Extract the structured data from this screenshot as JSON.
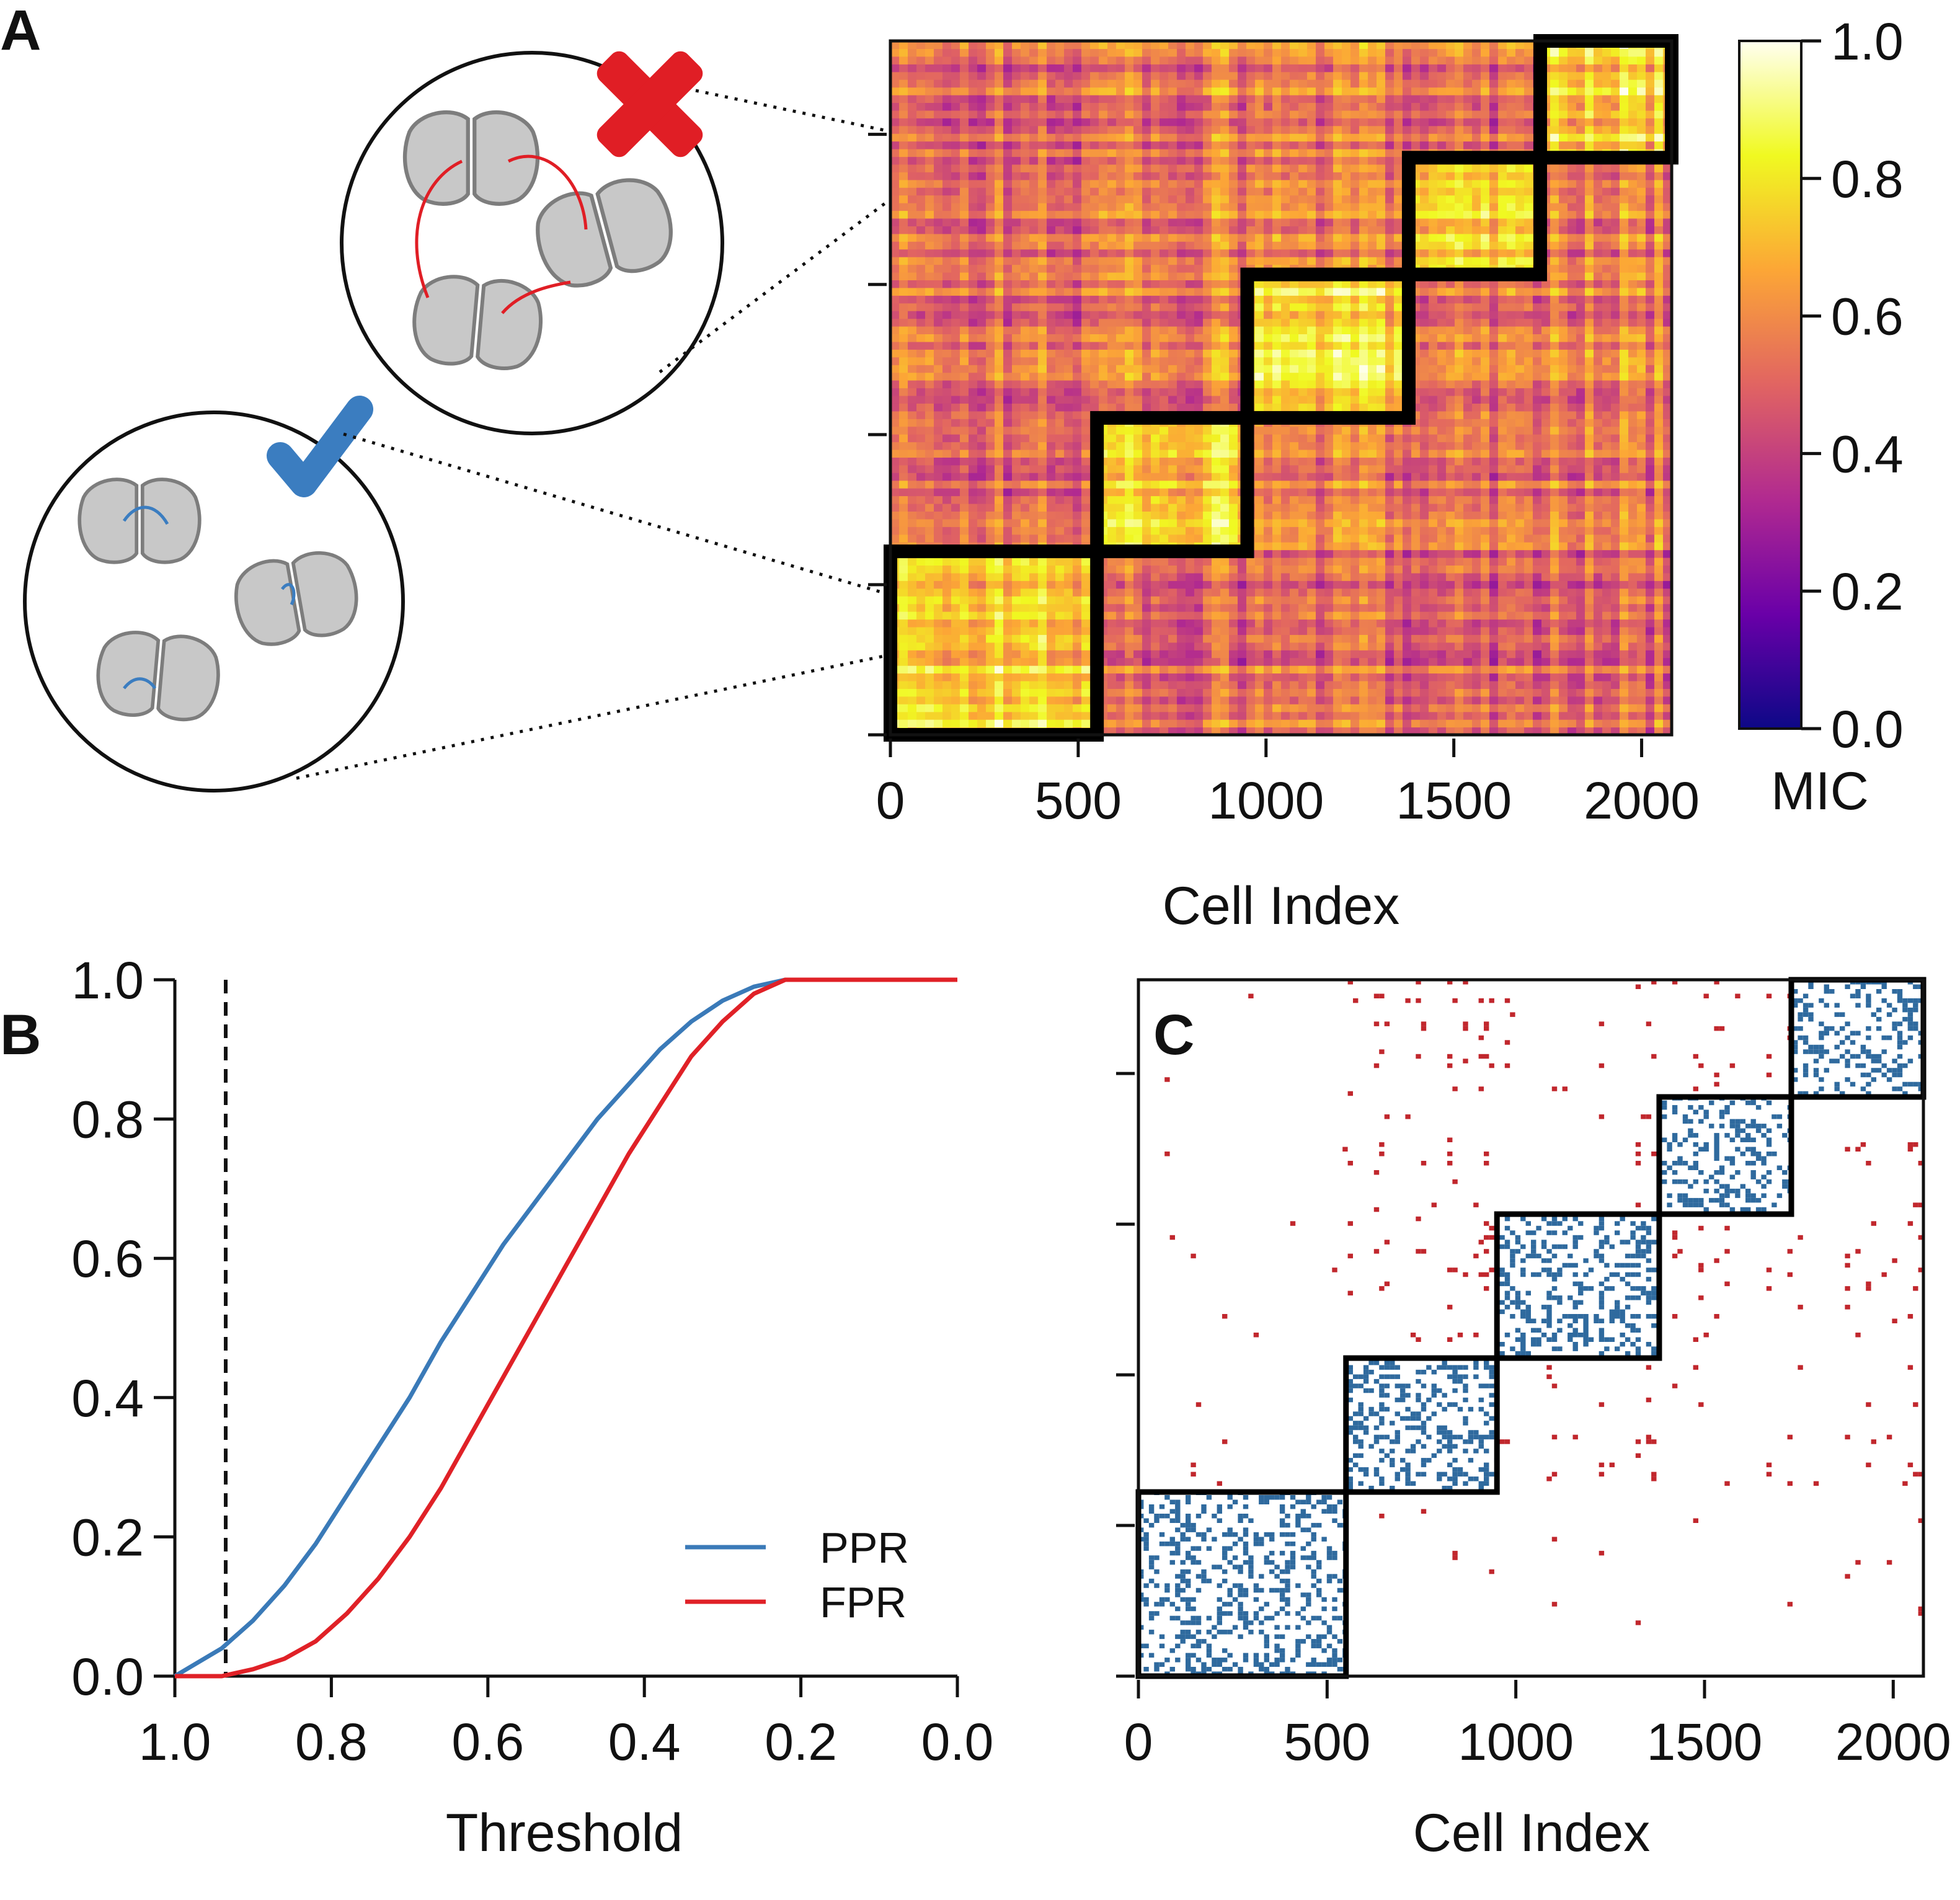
{
  "panel_labels": {
    "a": "A",
    "b": "B",
    "c": "C"
  },
  "colors": {
    "ppr": "#3a7ab8",
    "fpr": "#e02127",
    "c_in_block": "#2f6a9e",
    "c_out_block": "#c1272d",
    "cross_mark": "#e01e25",
    "check_mark": "#3b7dc0",
    "cell_fill": "#c8c8c8",
    "cell_stroke": "#7d7d7d",
    "colormap": [
      "#0d0887",
      "#6a00a8",
      "#b12a90",
      "#e16462",
      "#fca636",
      "#f0f921",
      "#fffff0"
    ]
  },
  "icons": {
    "cross": "cross-mark-icon",
    "check": "check-mark-icon"
  },
  "chart_data": [
    {
      "id": "A",
      "type": "heatmap",
      "xlabel": "Cell Index",
      "ylabel": "",
      "xlim": [
        0,
        2080
      ],
      "ylim": [
        0,
        2080
      ],
      "x_ticks": [
        0,
        500,
        1000,
        1500,
        2000
      ],
      "x_tick_labels": [
        "0",
        "500",
        "1000",
        "1500",
        "2000"
      ],
      "y_ticks": [
        0,
        450,
        900,
        1350,
        1800
      ],
      "y_tick_labels": [],
      "block_boundaries": [
        0,
        550,
        950,
        1380,
        1730,
        2080
      ],
      "colorbar": {
        "label": "MIC",
        "range": [
          0.0,
          1.0
        ],
        "ticks": [
          0.0,
          0.2,
          0.4,
          0.6,
          0.8,
          1.0
        ],
        "tick_labels": [
          "0.0",
          "0.2",
          "0.4",
          "0.6",
          "0.8",
          "1.0"
        ]
      },
      "cluster_blocks": [
        {
          "start": 0,
          "end": 550
        },
        {
          "start": 550,
          "end": 950
        },
        {
          "start": 950,
          "end": 1380
        },
        {
          "start": 1380,
          "end": 1730
        },
        {
          "start": 1730,
          "end": 2080
        }
      ],
      "approx_mean_mic_inside_blocks": 0.75,
      "approx_mean_mic_outside_blocks": 0.55
    },
    {
      "id": "B",
      "type": "line",
      "title": "",
      "xlabel": "Threshold",
      "ylabel": "",
      "xlim": [
        1.0,
        0.0
      ],
      "ylim": [
        0.0,
        1.0
      ],
      "x_ticks": [
        1.0,
        0.8,
        0.6,
        0.4,
        0.2,
        0.0
      ],
      "x_tick_labels": [
        "1.0",
        "0.8",
        "0.6",
        "0.4",
        "0.2",
        "0.0"
      ],
      "y_ticks": [
        0.0,
        0.2,
        0.4,
        0.6,
        0.8,
        1.0
      ],
      "y_tick_labels": [
        "0.0",
        "0.2",
        "0.4",
        "0.6",
        "0.8",
        "1.0"
      ],
      "vline": {
        "x": 0.935,
        "style": "dashed"
      },
      "legend_position": "lower-right",
      "series": [
        {
          "name": "PPR",
          "x": [
            1.0,
            0.97,
            0.94,
            0.9,
            0.86,
            0.82,
            0.78,
            0.74,
            0.7,
            0.66,
            0.62,
            0.58,
            0.54,
            0.5,
            0.46,
            0.42,
            0.38,
            0.34,
            0.3,
            0.26,
            0.22,
            0.2,
            0.1,
            0.0
          ],
          "y": [
            0.0,
            0.02,
            0.04,
            0.08,
            0.13,
            0.19,
            0.26,
            0.33,
            0.4,
            0.48,
            0.55,
            0.62,
            0.68,
            0.74,
            0.8,
            0.85,
            0.9,
            0.94,
            0.97,
            0.99,
            1.0,
            1.0,
            1.0,
            1.0
          ]
        },
        {
          "name": "FPR",
          "x": [
            1.0,
            0.94,
            0.9,
            0.86,
            0.82,
            0.78,
            0.74,
            0.7,
            0.66,
            0.62,
            0.58,
            0.54,
            0.5,
            0.46,
            0.42,
            0.38,
            0.34,
            0.3,
            0.26,
            0.22,
            0.2,
            0.1,
            0.0
          ],
          "y": [
            0.0,
            0.0,
            0.01,
            0.025,
            0.05,
            0.09,
            0.14,
            0.2,
            0.27,
            0.35,
            0.43,
            0.51,
            0.59,
            0.67,
            0.75,
            0.82,
            0.89,
            0.94,
            0.98,
            1.0,
            1.0,
            1.0,
            1.0
          ]
        }
      ]
    },
    {
      "id": "C",
      "type": "heatmap",
      "xlabel": "Cell Index",
      "ylabel": "",
      "xlim": [
        0,
        2080
      ],
      "ylim": [
        0,
        2080
      ],
      "x_ticks": [
        0,
        500,
        1000,
        1500,
        2000
      ],
      "x_tick_labels": [
        "0",
        "500",
        "1000",
        "1500",
        "2000"
      ],
      "y_ticks": [
        0,
        450,
        900,
        1350,
        1800
      ],
      "y_tick_labels": [],
      "block_boundaries": [
        0,
        550,
        950,
        1380,
        1730,
        2080
      ],
      "cluster_blocks": [
        {
          "start": 0,
          "end": 550
        },
        {
          "start": 550,
          "end": 950
        },
        {
          "start": 950,
          "end": 1380
        },
        {
          "start": 1380,
          "end": 1730
        },
        {
          "start": 1730,
          "end": 2080
        }
      ],
      "approx_link_density_inside_blocks": 0.35,
      "approx_link_density_outside_blocks": 0.04
    }
  ]
}
